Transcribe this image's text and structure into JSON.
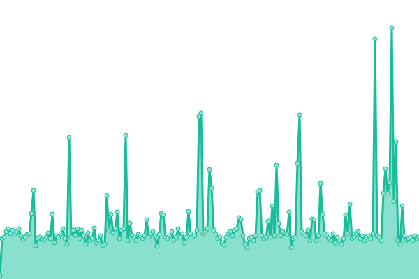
{
  "chart_data": {
    "type": "area",
    "title": "",
    "xlabel": "",
    "ylabel": "",
    "grid": false,
    "legend": "none",
    "axes_visible": false,
    "ylim": [
      0,
      400
    ],
    "colors": {
      "line": "#1abc9c",
      "fill": "#89e0cd",
      "marker_fill": "#8fe3cf",
      "marker_stroke": "#1abc9c"
    },
    "series": [
      {
        "values": [
          5,
          58,
          60,
          68,
          72,
          65,
          70,
          64,
          68,
          72,
          62,
          57,
          60,
          64,
          65,
          94,
          127,
          48,
          58,
          60,
          57,
          56,
          60,
          66,
          58,
          93,
          52,
          62,
          60,
          65,
          72,
          58,
          50,
          203,
          60,
          70,
          63,
          72,
          58,
          70,
          62,
          50,
          66,
          55,
          58,
          73,
          52,
          55,
          62,
          48,
          50,
          120,
          70,
          93,
          66,
          72,
          96,
          58,
          70,
          72,
          206,
          55,
          80,
          62,
          60,
          55,
          64,
          62,
          58,
          62,
          85,
          60,
          65,
          68,
          62,
          47,
          64,
          94,
          92,
          60,
          58,
          62,
          68,
          56,
          60,
          72,
          60,
          65,
          52,
          60,
          97,
          65,
          60,
          62,
          70,
          233,
          238,
          65,
          68,
          72,
          157,
          130,
          70,
          64,
          58,
          60,
          52,
          49,
          60,
          65,
          68,
          62,
          70,
          72,
          88,
          85,
          62,
          50,
          45,
          58,
          60,
          55,
          62,
          125,
          127,
          62,
          58,
          60,
          83,
          60,
          105,
          62,
          163,
          80,
          62,
          68,
          65,
          64,
          96,
          45,
          58,
          60,
          166,
          235,
          68,
          65,
          62,
          70,
          55,
          86,
          85,
          55,
          62,
          137,
          93,
          65,
          62,
          58,
          55,
          65,
          52,
          60,
          55,
          50,
          58,
          92,
          65,
          107,
          58,
          60,
          65,
          68,
          58,
          62,
          55,
          60,
          62,
          58,
          65,
          344,
          62,
          60,
          55,
          123,
          158,
          123,
          138,
          360,
          111,
          197,
          55,
          50,
          105,
          62,
          56,
          58,
          60,
          55,
          62,
          58,
          60
        ]
      }
    ]
  }
}
